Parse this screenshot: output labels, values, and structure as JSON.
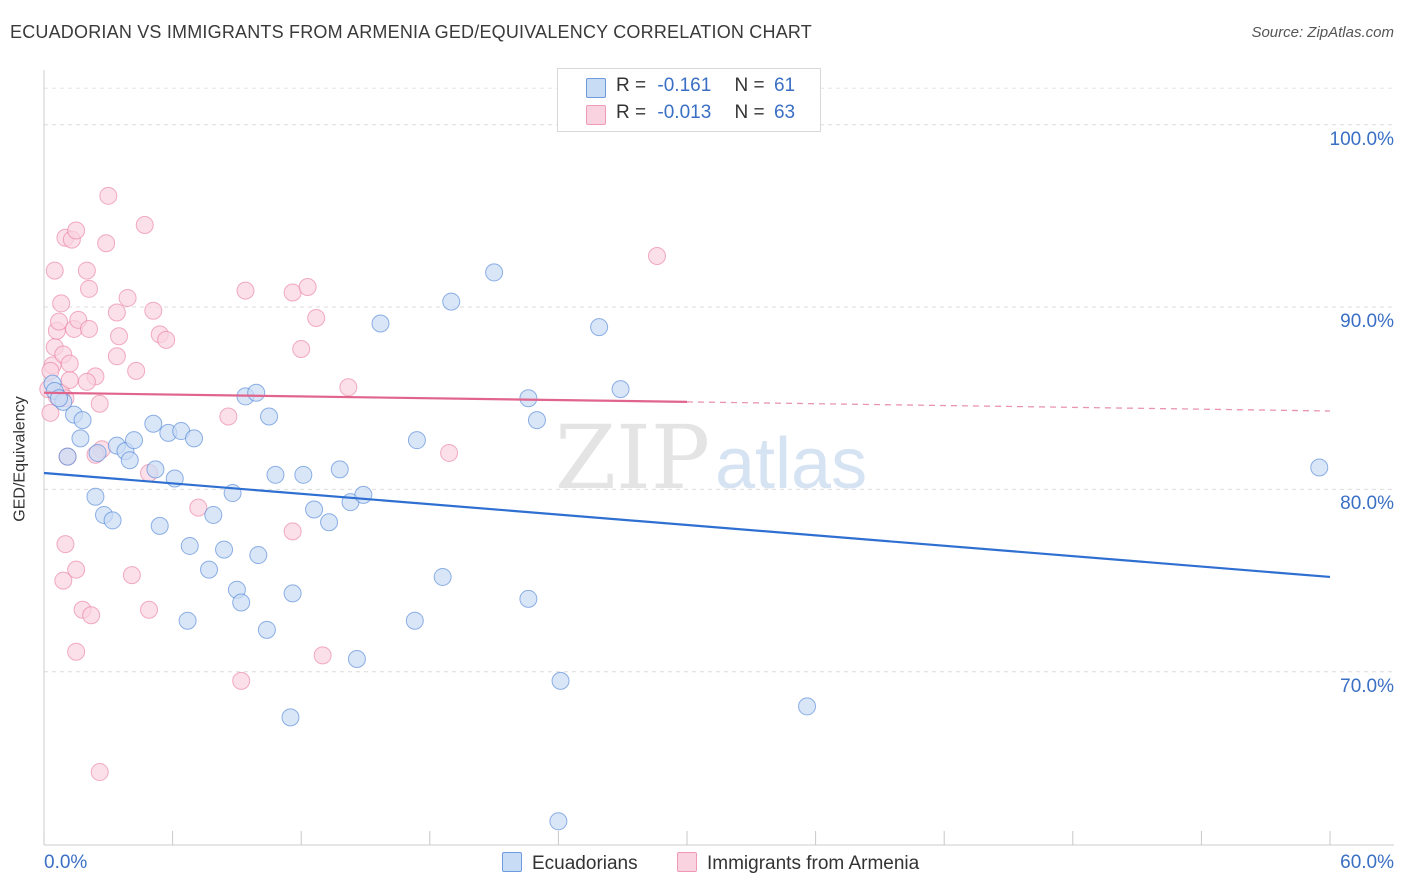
{
  "title": "ECUADORIAN VS IMMIGRANTS FROM ARMENIA GED/EQUIVALENCY CORRELATION CHART",
  "source": "Source: ZipAtlas.com",
  "watermark": {
    "zip": "ZIP",
    "atlas": "atlas"
  },
  "legend": {
    "rows": [
      {
        "r_label": "R =",
        "r_value": "-0.161",
        "n_label": "N =",
        "n_value": "61",
        "color": "#aac8f0"
      },
      {
        "r_label": "R =",
        "r_value": "-0.013",
        "n_label": "N =",
        "n_value": "63",
        "color": "#f7bccc"
      }
    ]
  },
  "bottom_legend": {
    "series1": "Ecuadorians",
    "series2": "Immigrants from Armenia"
  },
  "colors": {
    "blue": "#4a80d6",
    "blue_fill": "#c9dcf5",
    "pink": "#e9799d",
    "pink_fill": "#f9d3df",
    "axis_text": "#3a6fc4"
  },
  "chart_data": {
    "type": "scatter",
    "title": "ECUADORIAN VS IMMIGRANTS FROM ARMENIA GED/EQUIVALENCY CORRELATION CHART",
    "xlabel": "",
    "ylabel": "GED/Equivalency",
    "xlim": [
      0,
      60
    ],
    "ylim": [
      60.5,
      103
    ],
    "x_tick_labels": [
      "0.0%",
      "60.0%"
    ],
    "y_ticks": [
      70,
      80,
      90,
      100
    ],
    "y_tick_labels": [
      "70.0%",
      "80.0%",
      "90.0%",
      "100.0%"
    ],
    "grid": true,
    "legend_position": "top-center",
    "series": [
      {
        "name": "Ecuadorians",
        "color": "#4a80d6",
        "trend": {
          "x": [
            0,
            60
          ],
          "y": [
            80.9,
            75.2
          ]
        },
        "points": [
          [
            0.4,
            85.8
          ],
          [
            0.5,
            85.4
          ],
          [
            0.9,
            84.8
          ],
          [
            0.7,
            85.0
          ],
          [
            1.4,
            84.1
          ],
          [
            1.8,
            83.8
          ],
          [
            1.7,
            82.8
          ],
          [
            2.5,
            82.0
          ],
          [
            3.4,
            82.4
          ],
          [
            3.8,
            82.1
          ],
          [
            4.2,
            82.7
          ],
          [
            4.0,
            81.6
          ],
          [
            5.1,
            83.6
          ],
          [
            5.8,
            83.1
          ],
          [
            6.4,
            83.2
          ],
          [
            7.0,
            82.8
          ],
          [
            2.4,
            79.6
          ],
          [
            2.8,
            78.6
          ],
          [
            3.2,
            78.3
          ],
          [
            5.2,
            81.1
          ],
          [
            6.1,
            80.6
          ],
          [
            5.4,
            78.0
          ],
          [
            6.8,
            76.9
          ],
          [
            7.7,
            75.6
          ],
          [
            7.9,
            78.6
          ],
          [
            8.4,
            76.7
          ],
          [
            8.8,
            79.8
          ],
          [
            9.0,
            74.5
          ],
          [
            9.2,
            73.8
          ],
          [
            6.7,
            72.8
          ],
          [
            9.4,
            85.1
          ],
          [
            9.9,
            85.3
          ],
          [
            10.5,
            84.0
          ],
          [
            10.0,
            76.4
          ],
          [
            10.4,
            72.3
          ],
          [
            10.8,
            80.8
          ],
          [
            12.1,
            80.8
          ],
          [
            11.6,
            74.3
          ],
          [
            11.5,
            67.5
          ],
          [
            12.6,
            78.9
          ],
          [
            13.3,
            78.2
          ],
          [
            13.8,
            81.1
          ],
          [
            14.3,
            79.3
          ],
          [
            14.9,
            79.7
          ],
          [
            14.6,
            70.7
          ],
          [
            15.7,
            89.1
          ],
          [
            17.4,
            82.7
          ],
          [
            17.3,
            72.8
          ],
          [
            18.6,
            75.2
          ],
          [
            19.0,
            90.3
          ],
          [
            21.0,
            91.9
          ],
          [
            22.6,
            85.0
          ],
          [
            23.0,
            83.8
          ],
          [
            22.6,
            74.0
          ],
          [
            24.1,
            69.5
          ],
          [
            24.0,
            61.8
          ],
          [
            25.9,
            88.9
          ],
          [
            26.9,
            85.5
          ],
          [
            35.6,
            68.1
          ],
          [
            59.5,
            81.2
          ],
          [
            1.1,
            81.8
          ]
        ]
      },
      {
        "name": "Immigrants from Armenia",
        "color": "#e9799d",
        "trend": {
          "x": [
            0,
            30
          ],
          "y": [
            85.3,
            84.8
          ]
        },
        "trend_dashed": {
          "x": [
            30,
            60
          ],
          "y": [
            84.8,
            84.3
          ]
        },
        "points": [
          [
            0.2,
            85.5
          ],
          [
            0.3,
            84.2
          ],
          [
            0.4,
            86.8
          ],
          [
            0.5,
            87.8
          ],
          [
            0.6,
            88.7
          ],
          [
            0.7,
            89.2
          ],
          [
            0.8,
            90.2
          ],
          [
            0.9,
            87.4
          ],
          [
            0.8,
            85.3
          ],
          [
            1.0,
            85.0
          ],
          [
            1.2,
            86.0
          ],
          [
            1.2,
            86.9
          ],
          [
            1.1,
            81.8
          ],
          [
            1.4,
            88.8
          ],
          [
            1.6,
            89.3
          ],
          [
            0.5,
            92.0
          ],
          [
            1.0,
            93.8
          ],
          [
            1.3,
            93.7
          ],
          [
            1.5,
            94.2
          ],
          [
            2.0,
            92.0
          ],
          [
            2.1,
            91.0
          ],
          [
            2.1,
            88.8
          ],
          [
            2.4,
            86.2
          ],
          [
            2.6,
            84.7
          ],
          [
            2.7,
            82.2
          ],
          [
            2.4,
            81.9
          ],
          [
            3.0,
            96.1
          ],
          [
            2.9,
            93.5
          ],
          [
            3.4,
            89.7
          ],
          [
            3.5,
            88.4
          ],
          [
            3.4,
            87.3
          ],
          [
            3.9,
            90.5
          ],
          [
            4.3,
            86.5
          ],
          [
            4.7,
            94.5
          ],
          [
            5.1,
            89.8
          ],
          [
            5.4,
            88.5
          ],
          [
            5.7,
            88.2
          ],
          [
            4.9,
            80.9
          ],
          [
            4.1,
            75.3
          ],
          [
            4.9,
            73.4
          ],
          [
            1.0,
            77.0
          ],
          [
            1.5,
            75.6
          ],
          [
            0.9,
            75.0
          ],
          [
            1.8,
            73.4
          ],
          [
            2.2,
            73.1
          ],
          [
            1.5,
            71.1
          ],
          [
            2.6,
            64.5
          ],
          [
            7.2,
            79.0
          ],
          [
            8.6,
            84.0
          ],
          [
            9.4,
            90.9
          ],
          [
            11.6,
            90.8
          ],
          [
            12.3,
            91.1
          ],
          [
            12.0,
            87.7
          ],
          [
            12.7,
            89.4
          ],
          [
            11.6,
            77.7
          ],
          [
            14.2,
            85.6
          ],
          [
            13.0,
            70.9
          ],
          [
            9.2,
            69.5
          ],
          [
            18.9,
            82.0
          ],
          [
            28.6,
            92.8
          ],
          [
            0.3,
            86.5
          ],
          [
            0.6,
            85.1
          ],
          [
            2.0,
            85.9
          ]
        ]
      }
    ]
  }
}
